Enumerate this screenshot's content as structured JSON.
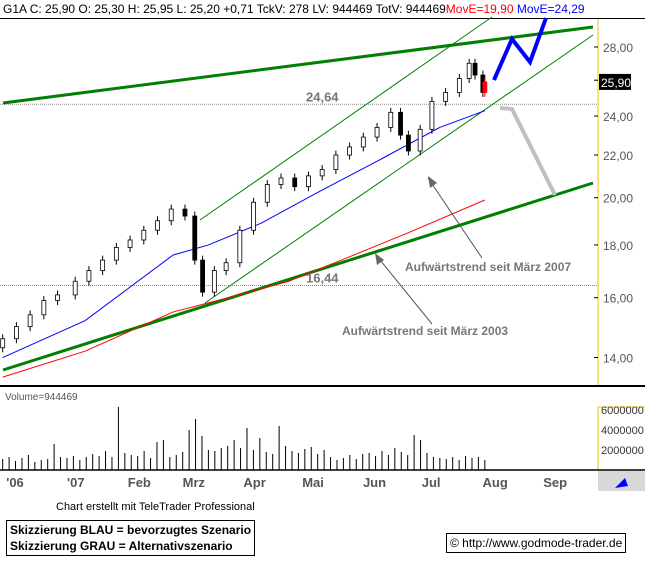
{
  "header": {
    "symbol": "G1A",
    "close": "C: 25,90",
    "open": "O: 25,30",
    "high": "H: 25,95",
    "low": "L: 25,20",
    "change": "+0,71",
    "tickvol": "TckV: 278",
    "lastvol": "LV: 944469",
    "totvol": "TotV: 944469",
    "ma_red": "MovE=19,90",
    "ma_blue": "MovE=24,29"
  },
  "colors": {
    "ma_red": "#ff0000",
    "ma_blue": "#0000ff",
    "trend": "#008000",
    "alt_scenario": "#c0c0c0",
    "axis_border": "#f0c000"
  },
  "chart_data": {
    "type": "candlestick",
    "scale": "log",
    "ylim": [
      13.2,
      30
    ],
    "y_ticks": [
      "28,00",
      "26,00",
      "24,00",
      "22,00",
      "20,00",
      "18,00",
      "16,00",
      "14,00"
    ],
    "y_tick_values": [
      28,
      26,
      24,
      22,
      20,
      18,
      16,
      14
    ],
    "last_price_label": "25,90",
    "x_ticks": [
      "'06",
      "'07",
      "Feb",
      "Mrz",
      "Apr",
      "Mai",
      "Jun",
      "Jul",
      "Aug",
      "Sep"
    ],
    "x_tick_dates": [
      "2006-12-01",
      "2007-01-01",
      "2007-02-01",
      "2007-03-01",
      "2007-04-01",
      "2007-05-01",
      "2007-06-01",
      "2007-07-01",
      "2007-08-01",
      "2007-09-01"
    ],
    "price": [
      [
        "2006-11-20",
        14.6
      ],
      [
        "2006-11-27",
        15.0
      ],
      [
        "2006-12-04",
        15.4
      ],
      [
        "2006-12-11",
        15.9
      ],
      [
        "2006-12-18",
        16.1
      ],
      [
        "2006-12-27",
        16.6
      ],
      [
        "2007-01-03",
        17.0
      ],
      [
        "2007-01-10",
        17.4
      ],
      [
        "2007-01-17",
        17.9
      ],
      [
        "2007-01-24",
        18.2
      ],
      [
        "2007-01-31",
        18.6
      ],
      [
        "2007-02-07",
        19.0
      ],
      [
        "2007-02-14",
        19.5
      ],
      [
        "2007-02-21",
        19.2
      ],
      [
        "2007-02-26",
        17.4
      ],
      [
        "2007-03-02",
        16.2
      ],
      [
        "2007-03-08",
        17.0
      ],
      [
        "2007-03-14",
        17.3
      ],
      [
        "2007-03-21",
        18.6
      ],
      [
        "2007-03-28",
        19.8
      ],
      [
        "2007-04-04",
        20.6
      ],
      [
        "2007-04-11",
        20.9
      ],
      [
        "2007-04-18",
        20.5
      ],
      [
        "2007-04-25",
        21.0
      ],
      [
        "2007-05-02",
        21.3
      ],
      [
        "2007-05-09",
        22.0
      ],
      [
        "2007-05-16",
        22.4
      ],
      [
        "2007-05-23",
        22.9
      ],
      [
        "2007-05-30",
        23.4
      ],
      [
        "2007-06-06",
        24.2
      ],
      [
        "2007-06-11",
        23.0
      ],
      [
        "2007-06-15",
        22.2
      ],
      [
        "2007-06-21",
        23.3
      ],
      [
        "2007-06-27",
        24.8
      ],
      [
        "2007-07-04",
        25.3
      ],
      [
        "2007-07-11",
        26.1
      ],
      [
        "2007-07-16",
        27.0
      ],
      [
        "2007-07-19",
        26.3
      ],
      [
        "2007-07-23",
        25.3
      ],
      [
        "2007-07-24",
        25.9
      ]
    ],
    "ma_blue": [
      [
        "2006-11-20",
        14.0
      ],
      [
        "2007-01-01",
        15.2
      ],
      [
        "2007-02-15",
        17.6
      ],
      [
        "2007-03-05",
        18.0
      ],
      [
        "2007-04-01",
        18.9
      ],
      [
        "2007-05-01",
        20.3
      ],
      [
        "2007-06-01",
        21.8
      ],
      [
        "2007-07-01",
        23.4
      ],
      [
        "2007-07-24",
        24.29
      ]
    ],
    "ma_red": [
      [
        "2006-11-20",
        13.4
      ],
      [
        "2007-01-01",
        14.2
      ],
      [
        "2007-02-15",
        15.5
      ],
      [
        "2007-03-15",
        16.0
      ],
      [
        "2007-04-15",
        16.6
      ],
      [
        "2007-05-15",
        17.5
      ],
      [
        "2007-06-15",
        18.5
      ],
      [
        "2007-07-24",
        19.9
      ]
    ],
    "levels": [
      {
        "label": "24,64",
        "value": 24.64
      },
      {
        "label": "16,44",
        "value": 16.44
      }
    ],
    "annotations": [
      "Aufwärtstrend seit März 2007",
      "Aufwärtstrend seit März 2003"
    ],
    "volume": {
      "label": "Volume=944469",
      "y_ticks": [
        "6000000",
        "4000000",
        "2000000"
      ],
      "y_tick_values": [
        6000000,
        4000000,
        2000000
      ],
      "values": [
        1100000,
        1300000,
        900000,
        1200000,
        1500000,
        800000,
        1000000,
        1100000,
        2600000,
        1300000,
        1200000,
        1400000,
        1000000,
        1300000,
        1600000,
        1400000,
        1900000,
        1300000,
        6300000,
        1700000,
        1500000,
        1400000,
        1900000,
        1200000,
        2800000,
        3000000,
        1300000,
        1500000,
        1800000,
        4000000,
        5100000,
        3400000,
        2000000,
        1900000,
        2200000,
        2400000,
        3000000,
        2200000,
        4200000,
        2000000,
        3200000,
        1800000,
        1600000,
        4400000,
        2400000,
        1900000,
        1700000,
        2100000,
        2300000,
        1600000,
        2000000,
        1300000,
        1000000,
        1200000,
        1500000,
        1100000,
        1600000,
        1700000,
        1400000,
        1900000,
        1500000,
        2200000,
        1800000,
        1500000,
        3500000,
        3000000,
        1700000,
        1300000,
        1200000,
        1100000,
        1300000,
        1000000,
        1400000,
        1200000,
        1300000,
        1000000
      ]
    }
  },
  "footer": {
    "credit": "Chart erstellt mit TeleTrader Professional",
    "legend_blue": "Skizzierung BLAU = bevorzugtes Szenario",
    "legend_grey": "Skizzierung GRAU = Alternativszenario",
    "copyright": "© http://www.godmode-trader.de"
  }
}
